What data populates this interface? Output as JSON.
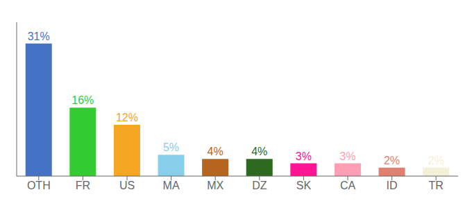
{
  "chart_data": {
    "type": "bar",
    "categories": [
      "OTH",
      "FR",
      "US",
      "MA",
      "MX",
      "DZ",
      "SK",
      "CA",
      "ID",
      "TR"
    ],
    "values": [
      31,
      16,
      12,
      5,
      4,
      4,
      3,
      3,
      2,
      2
    ],
    "value_labels": [
      "31%",
      "16%",
      "12%",
      "5%",
      "4%",
      "4%",
      "3%",
      "3%",
      "2%",
      "2%"
    ],
    "colors": [
      "#4472c4",
      "#33cc33",
      "#f5a623",
      "#87ceeb",
      "#b5651d",
      "#2d6a1f",
      "#ff1493",
      "#ff9eb5",
      "#e08070",
      "#f5f0d8"
    ],
    "ylim": [
      0,
      36
    ],
    "data_labels": true,
    "tick_labels": "x",
    "grid": false
  }
}
